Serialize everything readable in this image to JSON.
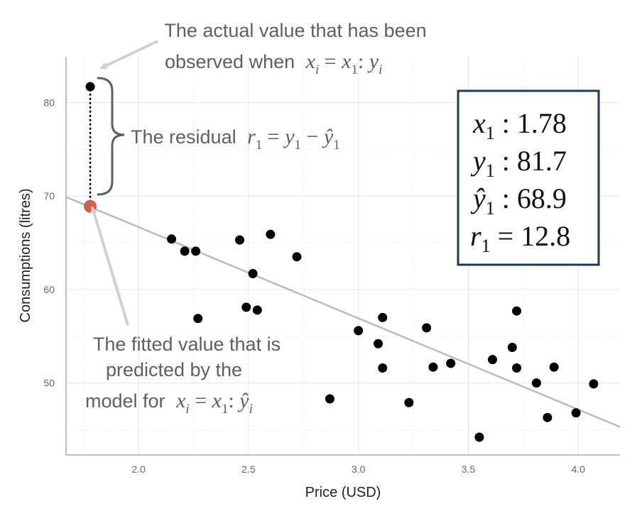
{
  "chart_data": {
    "type": "scatter",
    "xlabel": "Price (USD)",
    "ylabel": "Consumptions (litres)",
    "xlim": [
      1.67,
      4.19
    ],
    "ylim": [
      42.3,
      84.9
    ],
    "xticks": [
      2.0,
      2.5,
      3.0,
      3.5,
      4.0
    ],
    "xtick_labels": [
      "2.0",
      "2.5",
      "3.0",
      "3.5",
      "4.0"
    ],
    "yticks": [
      50,
      60,
      70,
      80
    ],
    "ytick_labels": [
      "50",
      "60",
      "70",
      "80"
    ],
    "grid": true,
    "points": [
      {
        "x": 1.78,
        "y": 81.7
      },
      {
        "x": 2.15,
        "y": 65.4
      },
      {
        "x": 2.21,
        "y": 64.1
      },
      {
        "x": 2.26,
        "y": 64.1
      },
      {
        "x": 2.27,
        "y": 56.9
      },
      {
        "x": 2.46,
        "y": 65.3
      },
      {
        "x": 2.49,
        "y": 58.1
      },
      {
        "x": 2.52,
        "y": 61.7
      },
      {
        "x": 2.54,
        "y": 57.8
      },
      {
        "x": 2.6,
        "y": 65.9
      },
      {
        "x": 2.72,
        "y": 63.5
      },
      {
        "x": 2.87,
        "y": 48.3
      },
      {
        "x": 3.0,
        "y": 55.6
      },
      {
        "x": 3.09,
        "y": 54.2
      },
      {
        "x": 3.11,
        "y": 57.0
      },
      {
        "x": 3.11,
        "y": 51.6
      },
      {
        "x": 3.23,
        "y": 47.9
      },
      {
        "x": 3.31,
        "y": 55.9
      },
      {
        "x": 3.34,
        "y": 51.7
      },
      {
        "x": 3.42,
        "y": 52.1
      },
      {
        "x": 3.55,
        "y": 44.2
      },
      {
        "x": 3.61,
        "y": 52.5
      },
      {
        "x": 3.7,
        "y": 53.8
      },
      {
        "x": 3.72,
        "y": 57.7
      },
      {
        "x": 3.72,
        "y": 51.6
      },
      {
        "x": 3.81,
        "y": 50.0
      },
      {
        "x": 3.86,
        "y": 46.3
      },
      {
        "x": 3.89,
        "y": 51.7
      },
      {
        "x": 3.99,
        "y": 46.8
      },
      {
        "x": 4.07,
        "y": 49.9
      }
    ],
    "highlight_point": {
      "x": 1.78,
      "y": 68.9,
      "color": "#d1604a"
    },
    "regression_line": {
      "x": [
        1.67,
        4.19
      ],
      "y": [
        69.9,
        45.3
      ],
      "color": "#bbbbbb"
    },
    "residual": {
      "x": 1.78,
      "y_from": 68.9,
      "y_to": 81.7
    },
    "annotations": {
      "observed_line1": "The actual value that has been",
      "observed_line2": "observed when",
      "observed_math": [
        "x",
        "i",
        " = ",
        "x",
        "1",
        ": ",
        "y",
        "i"
      ],
      "residual_text": "The residual",
      "residual_math": [
        "r",
        "1",
        " = ",
        "y",
        "1",
        " − ",
        "ŷ",
        "1"
      ],
      "fitted_line1": "The fitted value that is",
      "fitted_line2": "predicted by the",
      "fitted_line3": "model for",
      "fitted_math": [
        "x",
        "i",
        " = ",
        "x",
        "1",
        ": ",
        "ŷ",
        "i"
      ]
    },
    "info_box": {
      "border_color": "#1f3a5a",
      "rows": [
        {
          "var": "x",
          "sub": "1",
          "sep": " : ",
          "value": "1.78"
        },
        {
          "var": "y",
          "sub": "1",
          "sep": " : ",
          "value": "81.7"
        },
        {
          "var": "ŷ",
          "sub": "1",
          "sep": " : ",
          "value": "68.9"
        },
        {
          "var": "r",
          "sub": "1",
          "sep": " = ",
          "value": "12.8"
        }
      ]
    }
  }
}
